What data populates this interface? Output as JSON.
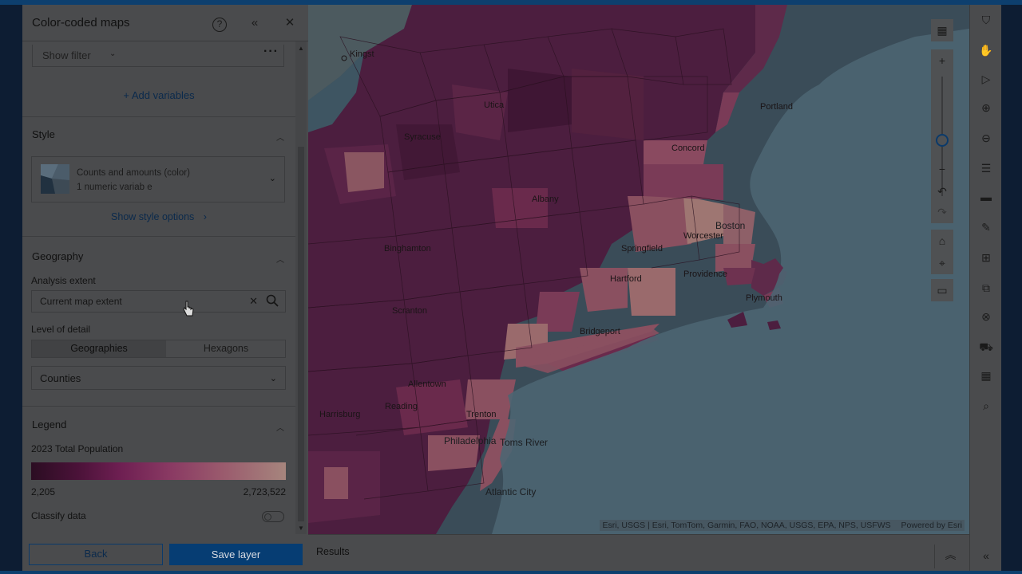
{
  "panel": {
    "title": "Color-coded maps",
    "filter_label": "Show filter",
    "add_variables": "+ Add variables",
    "style": {
      "heading": "Style",
      "card_line1": "Counts and amounts (color)",
      "card_line2": "1 numeric variab e",
      "show_options": "Show style options"
    },
    "geography": {
      "heading": "Geography",
      "extent_label": "Analysis extent",
      "extent_value": "Current map extent",
      "lod_label": "Level of detail",
      "seg_a": "Geographies",
      "seg_b": "Hexagons",
      "select_value": "Counties"
    },
    "legend": {
      "heading": "Legend",
      "variable": "2023 Total Population",
      "min": "2,205",
      "max": "2,723,522",
      "classify_label": "Classify data"
    },
    "footer": {
      "back": "Back",
      "save": "Save layer"
    }
  },
  "map": {
    "attribution": "Esri, USGS | Esri, TomTom, Garmin, FAO, NOAA, USGS, EPA, NPS, USFWS",
    "powered": "Powered by Esri",
    "labels": [
      "Kingst",
      "Albany",
      "Binghamton",
      "Springfield",
      "Hartford",
      "Worcester",
      "Boston",
      "Providence",
      "Plymouth",
      "Bridgeport",
      "Allentown",
      "Reading",
      "Harrisburg",
      "Philadelphia",
      "Toms River",
      "Atlantic City",
      "Concord",
      "Portland",
      "Scranton",
      "Trenton",
      "Syracuse",
      "Utica"
    ],
    "ramp_colors": [
      "#2b0d22",
      "#6e1f52",
      "#a6857d"
    ]
  },
  "results": {
    "title": "Results"
  }
}
